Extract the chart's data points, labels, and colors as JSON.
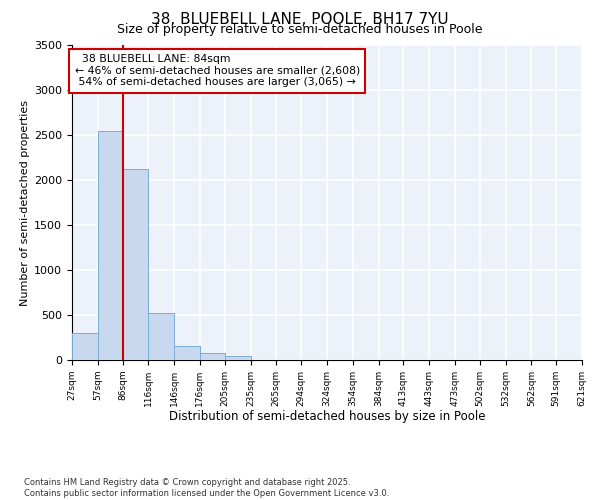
{
  "title": "38, BLUEBELL LANE, POOLE, BH17 7YU",
  "subtitle": "Size of property relative to semi-detached houses in Poole",
  "xlabel": "Distribution of semi-detached houses by size in Poole",
  "ylabel": "Number of semi-detached properties",
  "property_label": "38 BLUEBELL LANE: 84sqm",
  "pct_smaller": "46% of semi-detached houses are smaller (2,608)",
  "pct_larger": "54% of semi-detached houses are larger (3,065)",
  "bin_edges": [
    27,
    57,
    86,
    116,
    146,
    176,
    205,
    235,
    265,
    294,
    324,
    354,
    384,
    413,
    443,
    473,
    502,
    532,
    562,
    591,
    621
  ],
  "bin_counts": [
    295,
    2540,
    2120,
    520,
    155,
    80,
    40,
    0,
    0,
    0,
    0,
    0,
    0,
    0,
    0,
    0,
    0,
    0,
    0,
    0
  ],
  "ylim": [
    0,
    3500
  ],
  "bar_color": "#c8d8ee",
  "bar_edge_color": "#7aaed4",
  "vline_color": "#cc0000",
  "vline_x": 86,
  "annotation_box_color": "#cc0000",
  "background_color": "#edf2fa",
  "footnote1": "Contains HM Land Registry data © Crown copyright and database right 2025.",
  "footnote2": "Contains public sector information licensed under the Open Government Licence v3.0."
}
